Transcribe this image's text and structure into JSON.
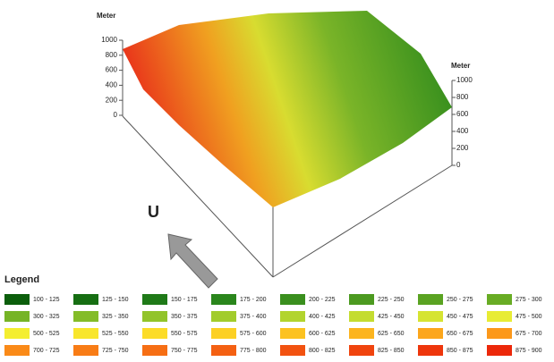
{
  "left_axis": {
    "label": "Meter",
    "ticks": [
      "1000",
      "800",
      "600",
      "400",
      "200",
      "0"
    ]
  },
  "right_axis": {
    "label": "Meter",
    "ticks": [
      "1000",
      "800",
      "600",
      "400",
      "200",
      "0"
    ]
  },
  "north_label": "U",
  "legend": {
    "title": "Legend",
    "items": [
      {
        "label": "100 - 125",
        "color": "#0b5e0b"
      },
      {
        "label": "125 - 150",
        "color": "#166e12"
      },
      {
        "label": "150 - 175",
        "color": "#1f7a18"
      },
      {
        "label": "175 - 200",
        "color": "#2a861c"
      },
      {
        "label": "200 - 225",
        "color": "#3a8f1e"
      },
      {
        "label": "225 - 250",
        "color": "#4c9a20"
      },
      {
        "label": "250 - 275",
        "color": "#5aa322"
      },
      {
        "label": "275 - 300",
        "color": "#68ac24"
      },
      {
        "label": "300 - 325",
        "color": "#76b426"
      },
      {
        "label": "325 - 350",
        "color": "#84bc28"
      },
      {
        "label": "350 - 375",
        "color": "#92c42a"
      },
      {
        "label": "375 - 400",
        "color": "#a2cc2c"
      },
      {
        "label": "400 - 425",
        "color": "#b2d42e"
      },
      {
        "label": "425 - 450",
        "color": "#c4dc30"
      },
      {
        "label": "450 - 475",
        "color": "#d6e432"
      },
      {
        "label": "475 - 500",
        "color": "#e8ec34"
      },
      {
        "label": "500 - 525",
        "color": "#f4ee30"
      },
      {
        "label": "525 - 550",
        "color": "#f8e62c"
      },
      {
        "label": "550 - 575",
        "color": "#fcdc28"
      },
      {
        "label": "575 - 600",
        "color": "#fcd024"
      },
      {
        "label": "600 - 625",
        "color": "#fcc220"
      },
      {
        "label": "625 - 650",
        "color": "#fcb41e"
      },
      {
        "label": "650 - 675",
        "color": "#fca61c"
      },
      {
        "label": "675 - 700",
        "color": "#fc981a"
      },
      {
        "label": "700 - 725",
        "color": "#fa8a18"
      },
      {
        "label": "725 - 750",
        "color": "#f87c16"
      },
      {
        "label": "750 - 775",
        "color": "#f66e14"
      },
      {
        "label": "775 - 800",
        "color": "#f46012"
      },
      {
        "label": "800 - 825",
        "color": "#f25210"
      },
      {
        "label": "825 - 850",
        "color": "#f0440e"
      },
      {
        "label": "850 - 875",
        "color": "#ee360c"
      },
      {
        "label": "875 - 900",
        "color": "#ec280a"
      }
    ]
  }
}
